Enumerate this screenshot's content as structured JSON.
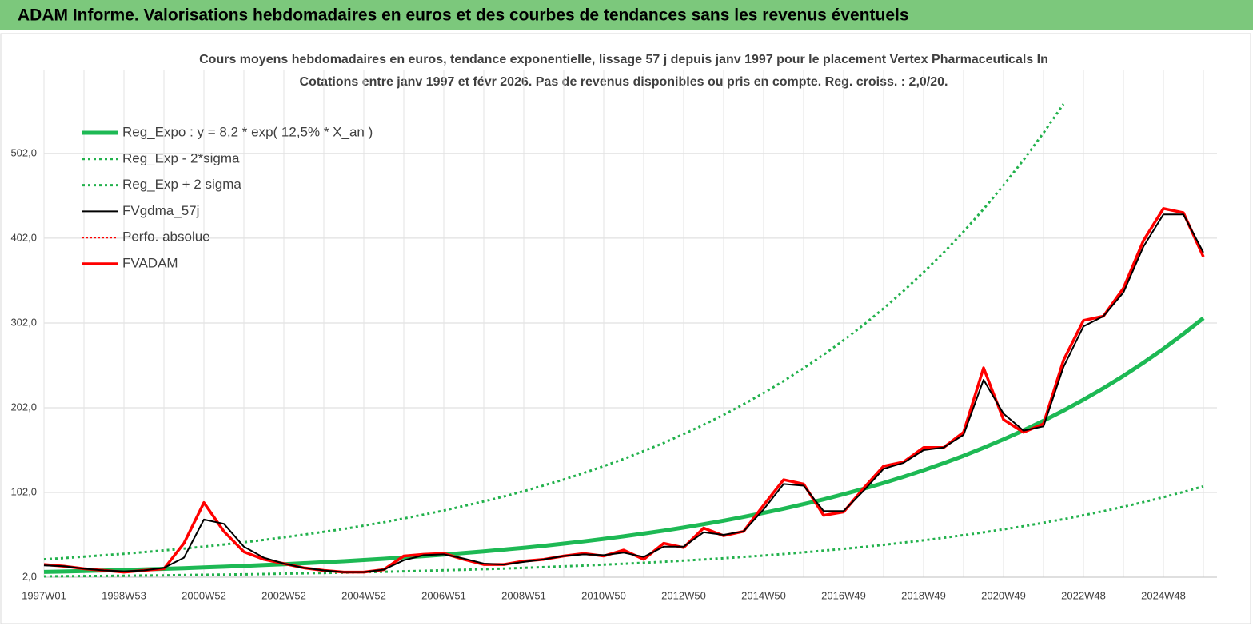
{
  "header": {
    "title": "ADAM Informe. Valorisations hebdomadaires en euros et des courbes de tendances sans les revenus éventuels"
  },
  "chart_data": {
    "type": "line",
    "title": "Cours moyens hebdomadaires en euros, tendance exponentielle, lissage 57 j depuis janv 1997  pour le placement Vertex Pharmaceuticals In",
    "subtitle": "Cotations entre janv 1997 et févr 2026. Pas de revenus disponibles ou pris en  compte. Reg. croiss. : 2,0/20.",
    "categories": [
      "1997W01",
      null,
      null,
      null,
      "1998W53",
      null,
      null,
      null,
      "2000W52",
      null,
      null,
      null,
      "2002W52",
      null,
      null,
      null,
      "2004W52",
      null,
      null,
      null,
      "2006W51",
      null,
      null,
      null,
      "2008W51",
      null,
      null,
      null,
      "2010W50",
      null,
      null,
      null,
      "2012W50",
      null,
      null,
      null,
      "2014W50",
      null,
      null,
      null,
      "2016W49",
      null,
      null,
      null,
      "2018W49",
      null,
      null,
      null,
      "2020W49",
      null,
      null,
      null,
      "2022W48",
      null,
      null,
      null,
      "2024W48",
      null,
      null
    ],
    "ylim": [
      2,
      600
    ],
    "yticks": [
      {
        "value": 2,
        "label": "2,0"
      },
      {
        "value": 102,
        "label": "102,0"
      },
      {
        "value": 202,
        "label": "202,0"
      },
      {
        "value": 302,
        "label": "302,0"
      },
      {
        "value": 402,
        "label": "402,0"
      },
      {
        "value": 502,
        "label": "502,0"
      }
    ],
    "grid": true,
    "series": [
      {
        "name": "Reg_Expo : y = 8,2 * exp( 12,5% *  X_an )",
        "color": "#1db954",
        "style": "solid",
        "width": 5,
        "values": [
          8.2,
          8.7,
          9.3,
          9.9,
          10.5,
          11.2,
          11.9,
          12.7,
          13.5,
          14.4,
          15.3,
          16.3,
          17.4,
          18.5,
          19.7,
          20.9,
          22.3,
          23.7,
          25.3,
          26.9,
          28.6,
          30.5,
          32.4,
          34.5,
          36.7,
          39.1,
          41.6,
          44.3,
          47.2,
          50.2,
          53.5,
          56.9,
          60.6,
          64.5,
          68.7,
          73.1,
          77.8,
          82.8,
          88.2,
          93.8,
          99.9,
          106.3,
          113.2,
          120.5,
          128.3,
          136.5,
          145.3,
          154.7,
          164.7,
          175.3,
          186.6,
          198.7,
          211.5,
          225.1,
          239.6,
          255.1,
          271.5,
          289.1,
          307.7
        ]
      },
      {
        "name": "Reg_Exp - 2*sigma",
        "color": "#22b14c",
        "style": "dotted",
        "width": 3,
        "values": [
          2.9,
          3.1,
          3.3,
          3.5,
          3.7,
          4.0,
          4.2,
          4.5,
          4.8,
          5.1,
          5.4,
          5.8,
          6.2,
          6.6,
          7.0,
          7.4,
          7.9,
          8.4,
          9.0,
          9.5,
          10.2,
          10.8,
          11.5,
          12.2,
          13.0,
          13.9,
          14.8,
          15.7,
          16.8,
          17.8,
          19.0,
          20.2,
          21.5,
          22.9,
          24.4,
          26.0,
          27.6,
          29.4,
          31.3,
          33.3,
          35.5,
          37.7,
          40.2,
          42.8,
          45.5,
          48.5,
          51.6,
          54.9,
          58.5,
          62.2,
          66.2,
          70.5,
          75.1,
          79.9,
          85.1,
          90.6,
          96.4,
          102.6,
          109.2
        ]
      },
      {
        "name": "Reg_Exp + 2 sigma",
        "color": "#22b14c",
        "style": "dotted",
        "width": 3,
        "values": [
          23.1,
          24.5,
          26.2,
          27.9,
          29.6,
          31.6,
          33.6,
          35.8,
          38.1,
          40.6,
          43.1,
          46.0,
          49.1,
          52.2,
          55.6,
          58.9,
          62.9,
          66.8,
          71.3,
          75.9,
          80.7,
          86.0,
          91.4,
          97.3,
          103.5,
          110.3,
          117.3,
          124.9,
          133.1,
          141.6,
          150.9,
          160.5,
          170.9,
          181.9,
          193.7,
          206.1,
          219.4,
          233.5,
          248.7,
          264.5,
          281.7,
          299.8,
          319.2,
          339.8,
          361.8,
          384.9,
          409.7,
          436.3,
          464.5,
          494.3,
          526.2,
          560.3,
          null,
          null,
          null,
          null,
          null,
          null,
          null
        ]
      },
      {
        "name": "FVgdma_57j",
        "color": "#000000",
        "style": "solid",
        "width": 2,
        "values": [
          16,
          15,
          12,
          10,
          9,
          10,
          13,
          25,
          70,
          65,
          38,
          25,
          18,
          13,
          10,
          8,
          8,
          11,
          22,
          28,
          29,
          24,
          18,
          17,
          20,
          23,
          27,
          29,
          28,
          31,
          26,
          38,
          38,
          55,
          52,
          56,
          82,
          112,
          110,
          80,
          80,
          104,
          130,
          137,
          152,
          155,
          170,
          235,
          195,
          175,
          180,
          250,
          298,
          310,
          338,
          392,
          430,
          430,
          385
        ]
      },
      {
        "name": "Perfo. absolue",
        "color": "#ff0000",
        "style": "dotted",
        "width": 2,
        "values": [
          null,
          null,
          null,
          null,
          null,
          null,
          null,
          null,
          null,
          null,
          null,
          null,
          null,
          null,
          null,
          null,
          null,
          null,
          null,
          null,
          null,
          null,
          null,
          null,
          null,
          null,
          null,
          null,
          null,
          null,
          null,
          null,
          null,
          null,
          null,
          null,
          null,
          null,
          null,
          null,
          null,
          null,
          null,
          null,
          null,
          null,
          null,
          null,
          null,
          null,
          null,
          null,
          null,
          null,
          null,
          null,
          null,
          null,
          null
        ]
      },
      {
        "name": "FVADAM",
        "color": "#ff0000",
        "style": "solid",
        "width": 3.5,
        "values": [
          17,
          15,
          12,
          10,
          8,
          10,
          12,
          42,
          90,
          56,
          32,
          23,
          18,
          13,
          10,
          8,
          8,
          11,
          27,
          29,
          30,
          23,
          17,
          17,
          21,
          23,
          27,
          30,
          27,
          34,
          23,
          42,
          37,
          60,
          51,
          56,
          87,
          117,
          112,
          75,
          79,
          107,
          133,
          138,
          155,
          155,
          173,
          249,
          188,
          173,
          183,
          258,
          305,
          310,
          343,
          399,
          437,
          432,
          380
        ]
      }
    ]
  }
}
